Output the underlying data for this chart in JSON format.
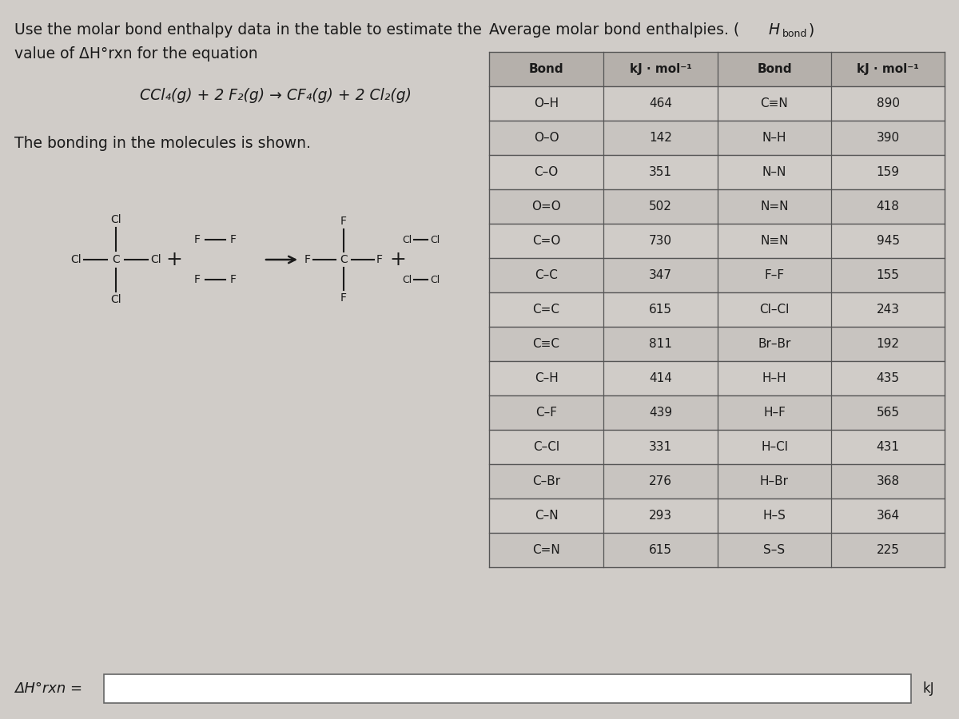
{
  "bg_color": "#d0ccc8",
  "text_color": "#1a1a1a",
  "table_border_color": "#555555",
  "header_bg": "#b8b4b0",
  "row_bg_even": "#d0ccc8",
  "row_bg_odd": "#c8c4c0",
  "left_line1": "Use the molar bond enthalpy data in the table to estimate the",
  "left_line2": "value of ΔH°rxn for the equation",
  "equation": "CCl₄(g) + 2 F₂(g) → CF₄(g) + 2 Cl₂(g)",
  "bonding_text": "The bonding in the molecules is shown.",
  "table_title_pre": "Average molar bond enthalpies. (",
  "table_title_H": "H",
  "table_title_sub": "bond",
  "table_title_post": ")",
  "col_headers": [
    "Bond",
    "kJ · mol⁻¹",
    "Bond",
    "kJ · mol⁻¹"
  ],
  "table_data": [
    [
      "O–H",
      "464",
      "C≡N",
      "890"
    ],
    [
      "O–O",
      "142",
      "N–H",
      "390"
    ],
    [
      "C–O",
      "351",
      "N–N",
      "159"
    ],
    [
      "O=O",
      "502",
      "N=N",
      "418"
    ],
    [
      "C=O",
      "730",
      "N≡N",
      "945"
    ],
    [
      "C–C",
      "347",
      "F–F",
      "155"
    ],
    [
      "C=C",
      "615",
      "Cl–Cl",
      "243"
    ],
    [
      "C≡C",
      "811",
      "Br–Br",
      "192"
    ],
    [
      "C–H",
      "414",
      "H–H",
      "435"
    ],
    [
      "C–F",
      "439",
      "H–F",
      "565"
    ],
    [
      "C–Cl",
      "331",
      "H–Cl",
      "431"
    ],
    [
      "C–Br",
      "276",
      "H–Br",
      "368"
    ],
    [
      "C–N",
      "293",
      "H–S",
      "364"
    ],
    [
      "C=N",
      "615",
      "S–S",
      "225"
    ]
  ],
  "answer_label": "ΔH°rxn =",
  "answer_unit": "kJ"
}
